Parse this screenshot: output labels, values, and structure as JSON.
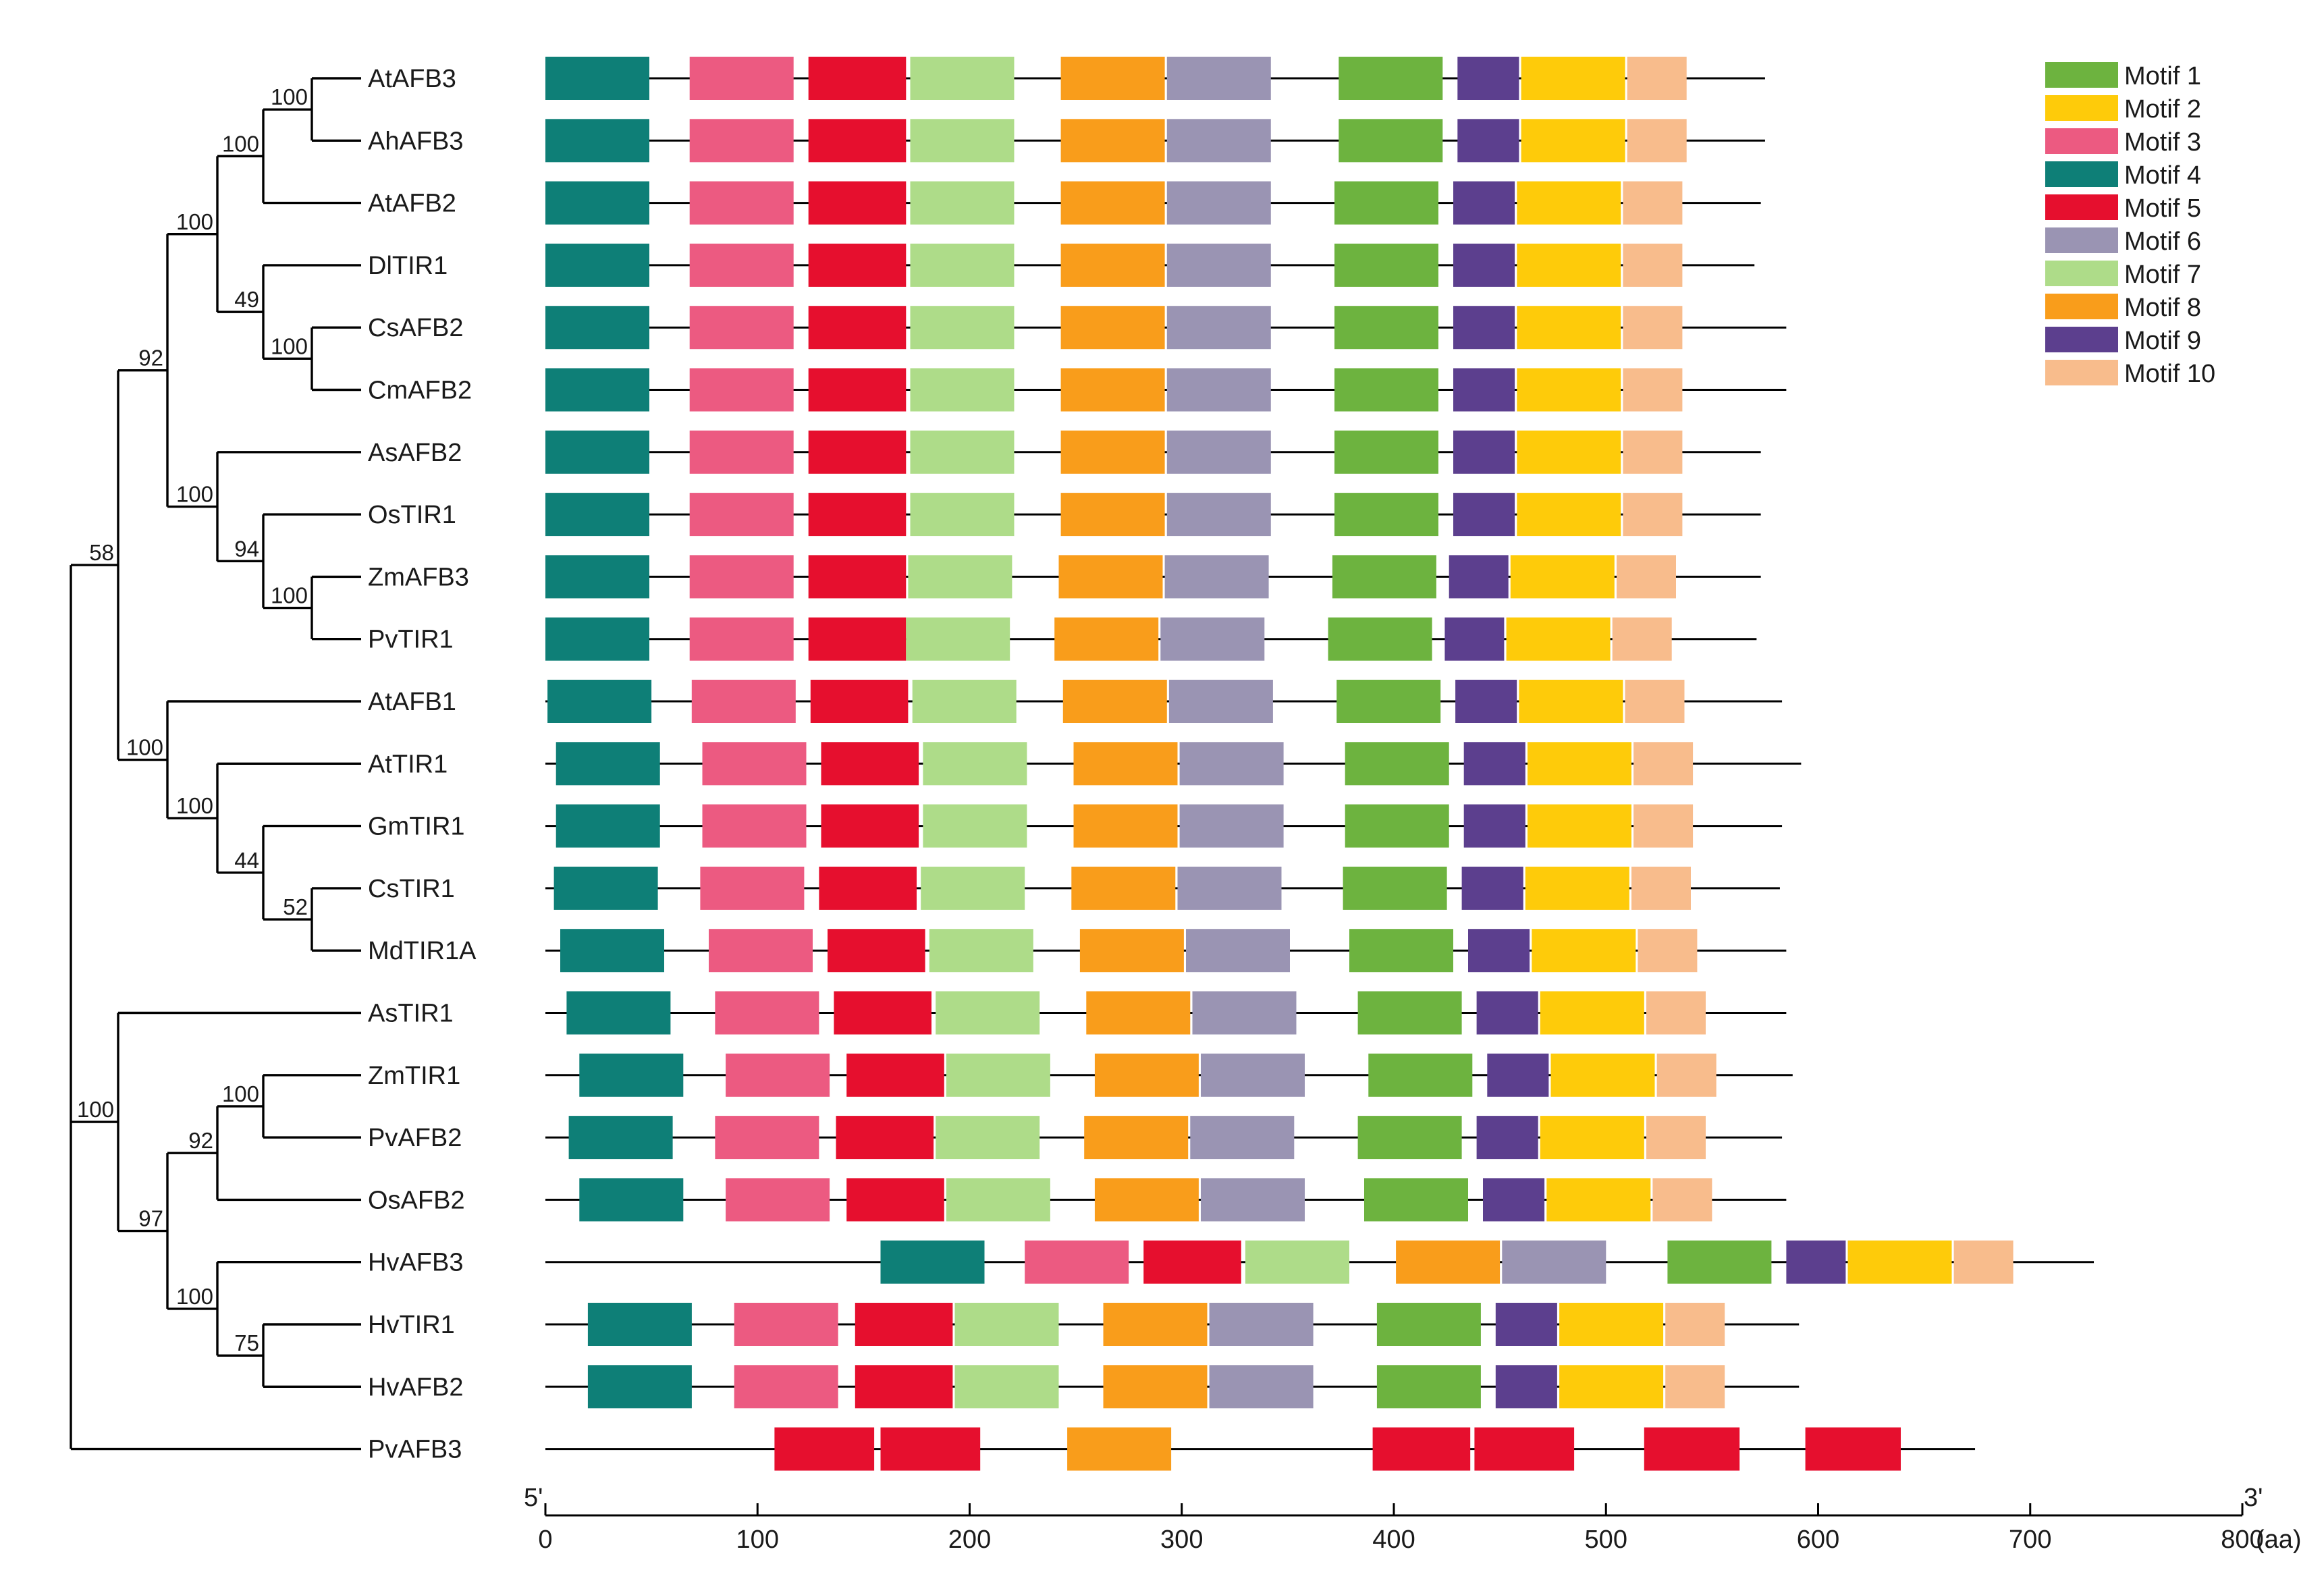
{
  "axis": {
    "unit": "(aa)",
    "end5": "5'",
    "end3": "3'",
    "ticks": [
      0,
      100,
      200,
      300,
      400,
      500,
      600,
      700,
      800
    ]
  },
  "legend": [
    {
      "label": "Motif 1",
      "color": "#6db33f"
    },
    {
      "label": "Motif 2",
      "color": "#fecb0a"
    },
    {
      "label": "Motif 3",
      "color": "#ec5a81"
    },
    {
      "label": "Motif 4",
      "color": "#0e7f77"
    },
    {
      "label": "Motif 5",
      "color": "#e60f2e"
    },
    {
      "label": "Motif 6",
      "color": "#9a94b3"
    },
    {
      "label": "Motif 7",
      "color": "#aedc89"
    },
    {
      "label": "Motif 8",
      "color": "#f99d1b"
    },
    {
      "label": "Motif 9",
      "color": "#5c3f8e"
    },
    {
      "label": "Motif 10",
      "color": "#f8bc8c"
    }
  ],
  "proteins": [
    {
      "name": "AtAFB3",
      "length": 575,
      "motifs": [
        [
          4,
          0,
          49
        ],
        [
          3,
          68,
          117
        ],
        [
          5,
          124,
          170
        ],
        [
          7,
          172,
          221
        ],
        [
          8,
          243,
          292
        ],
        [
          6,
          293,
          342
        ],
        [
          1,
          374,
          423
        ],
        [
          9,
          430,
          459
        ],
        [
          2,
          460,
          509
        ],
        [
          10,
          510,
          538
        ]
      ]
    },
    {
      "name": "AhAFB3",
      "length": 575,
      "motifs": [
        [
          4,
          0,
          49
        ],
        [
          3,
          68,
          117
        ],
        [
          5,
          124,
          170
        ],
        [
          7,
          172,
          221
        ],
        [
          8,
          243,
          292
        ],
        [
          6,
          293,
          342
        ],
        [
          1,
          374,
          423
        ],
        [
          9,
          430,
          459
        ],
        [
          2,
          460,
          509
        ],
        [
          10,
          510,
          538
        ]
      ]
    },
    {
      "name": "AtAFB2",
      "length": 573,
      "motifs": [
        [
          4,
          0,
          49
        ],
        [
          3,
          68,
          117
        ],
        [
          5,
          124,
          170
        ],
        [
          7,
          172,
          221
        ],
        [
          8,
          243,
          292
        ],
        [
          6,
          293,
          342
        ],
        [
          1,
          372,
          421
        ],
        [
          9,
          428,
          457
        ],
        [
          2,
          458,
          507
        ],
        [
          10,
          508,
          536
        ]
      ]
    },
    {
      "name": "DlTIR1",
      "length": 570,
      "motifs": [
        [
          4,
          0,
          49
        ],
        [
          3,
          68,
          117
        ],
        [
          5,
          124,
          170
        ],
        [
          7,
          172,
          221
        ],
        [
          8,
          243,
          292
        ],
        [
          6,
          293,
          342
        ],
        [
          1,
          372,
          421
        ],
        [
          9,
          428,
          457
        ],
        [
          2,
          458,
          507
        ],
        [
          10,
          508,
          536
        ]
      ]
    },
    {
      "name": "CsAFB2",
      "length": 585,
      "motifs": [
        [
          4,
          0,
          49
        ],
        [
          3,
          68,
          117
        ],
        [
          5,
          124,
          170
        ],
        [
          7,
          172,
          221
        ],
        [
          8,
          243,
          292
        ],
        [
          6,
          293,
          342
        ],
        [
          1,
          372,
          421
        ],
        [
          9,
          428,
          457
        ],
        [
          2,
          458,
          507
        ],
        [
          10,
          508,
          536
        ]
      ]
    },
    {
      "name": "CmAFB2",
      "length": 585,
      "motifs": [
        [
          4,
          0,
          49
        ],
        [
          3,
          68,
          117
        ],
        [
          5,
          124,
          170
        ],
        [
          7,
          172,
          221
        ],
        [
          8,
          243,
          292
        ],
        [
          6,
          293,
          342
        ],
        [
          1,
          372,
          421
        ],
        [
          9,
          428,
          457
        ],
        [
          2,
          458,
          507
        ],
        [
          10,
          508,
          536
        ]
      ]
    },
    {
      "name": "AsAFB2",
      "length": 573,
      "motifs": [
        [
          4,
          0,
          49
        ],
        [
          3,
          68,
          117
        ],
        [
          5,
          124,
          170
        ],
        [
          7,
          172,
          221
        ],
        [
          8,
          243,
          292
        ],
        [
          6,
          293,
          342
        ],
        [
          1,
          372,
          421
        ],
        [
          9,
          428,
          457
        ],
        [
          2,
          458,
          507
        ],
        [
          10,
          508,
          536
        ]
      ]
    },
    {
      "name": "OsTIR1",
      "length": 573,
      "motifs": [
        [
          4,
          0,
          49
        ],
        [
          3,
          68,
          117
        ],
        [
          5,
          124,
          170
        ],
        [
          7,
          172,
          221
        ],
        [
          8,
          243,
          292
        ],
        [
          6,
          293,
          342
        ],
        [
          1,
          372,
          421
        ],
        [
          9,
          428,
          457
        ],
        [
          2,
          458,
          507
        ],
        [
          10,
          508,
          536
        ]
      ]
    },
    {
      "name": "ZmAFB3",
      "length": 573,
      "motifs": [
        [
          4,
          0,
          49
        ],
        [
          3,
          68,
          117
        ],
        [
          5,
          124,
          170
        ],
        [
          7,
          171,
          220
        ],
        [
          8,
          242,
          291
        ],
        [
          6,
          292,
          341
        ],
        [
          1,
          371,
          420
        ],
        [
          9,
          426,
          454
        ],
        [
          2,
          455,
          504
        ],
        [
          10,
          505,
          533
        ]
      ]
    },
    {
      "name": "PvTIR1",
      "length": 571,
      "motifs": [
        [
          4,
          0,
          49
        ],
        [
          3,
          68,
          117
        ],
        [
          5,
          124,
          170
        ],
        [
          7,
          170,
          219
        ],
        [
          8,
          240,
          289
        ],
        [
          6,
          290,
          339
        ],
        [
          1,
          369,
          418
        ],
        [
          9,
          424,
          452
        ],
        [
          2,
          453,
          502
        ],
        [
          10,
          503,
          531
        ]
      ]
    },
    {
      "name": "AtAFB1",
      "length": 583,
      "motifs": [
        [
          4,
          1,
          50
        ],
        [
          3,
          69,
          118
        ],
        [
          5,
          125,
          171
        ],
        [
          7,
          173,
          222
        ],
        [
          8,
          244,
          293
        ],
        [
          6,
          294,
          343
        ],
        [
          1,
          373,
          422
        ],
        [
          9,
          429,
          458
        ],
        [
          2,
          459,
          508
        ],
        [
          10,
          509,
          537
        ]
      ]
    },
    {
      "name": "AtTIR1",
      "length": 592,
      "motifs": [
        [
          4,
          5,
          54
        ],
        [
          3,
          74,
          123
        ],
        [
          5,
          130,
          176
        ],
        [
          7,
          178,
          227
        ],
        [
          8,
          249,
          298
        ],
        [
          6,
          299,
          348
        ],
        [
          1,
          377,
          426
        ],
        [
          9,
          433,
          462
        ],
        [
          2,
          463,
          512
        ],
        [
          10,
          513,
          541
        ]
      ]
    },
    {
      "name": "GmTIR1",
      "length": 583,
      "motifs": [
        [
          4,
          5,
          54
        ],
        [
          3,
          74,
          123
        ],
        [
          5,
          130,
          176
        ],
        [
          7,
          178,
          227
        ],
        [
          8,
          249,
          298
        ],
        [
          6,
          299,
          348
        ],
        [
          1,
          377,
          426
        ],
        [
          9,
          433,
          462
        ],
        [
          2,
          463,
          512
        ],
        [
          10,
          513,
          541
        ]
      ]
    },
    {
      "name": "CsTIR1",
      "length": 582,
      "motifs": [
        [
          4,
          4,
          53
        ],
        [
          3,
          73,
          122
        ],
        [
          5,
          129,
          175
        ],
        [
          7,
          177,
          226
        ],
        [
          8,
          248,
          297
        ],
        [
          6,
          298,
          347
        ],
        [
          1,
          376,
          425
        ],
        [
          9,
          432,
          461
        ],
        [
          2,
          462,
          511
        ],
        [
          10,
          512,
          540
        ]
      ]
    },
    {
      "name": "MdTIR1A",
      "length": 585,
      "motifs": [
        [
          4,
          7,
          56
        ],
        [
          3,
          77,
          126
        ],
        [
          5,
          133,
          179
        ],
        [
          7,
          181,
          230
        ],
        [
          8,
          252,
          301
        ],
        [
          6,
          302,
          351
        ],
        [
          1,
          379,
          428
        ],
        [
          9,
          435,
          464
        ],
        [
          2,
          465,
          514
        ],
        [
          10,
          515,
          543
        ]
      ]
    },
    {
      "name": "AsTIR1",
      "length": 585,
      "motifs": [
        [
          4,
          10,
          59
        ],
        [
          3,
          80,
          129
        ],
        [
          5,
          136,
          182
        ],
        [
          7,
          184,
          233
        ],
        [
          8,
          255,
          304
        ],
        [
          6,
          305,
          354
        ],
        [
          1,
          383,
          432
        ],
        [
          9,
          439,
          468
        ],
        [
          2,
          469,
          518
        ],
        [
          10,
          519,
          547
        ]
      ]
    },
    {
      "name": "ZmTIR1",
      "length": 588,
      "motifs": [
        [
          4,
          16,
          65
        ],
        [
          3,
          85,
          134
        ],
        [
          5,
          142,
          188
        ],
        [
          7,
          189,
          238
        ],
        [
          8,
          259,
          308
        ],
        [
          6,
          309,
          358
        ],
        [
          1,
          388,
          437
        ],
        [
          9,
          444,
          473
        ],
        [
          2,
          474,
          523
        ],
        [
          10,
          524,
          552
        ]
      ]
    },
    {
      "name": "PvAFB2",
      "length": 583,
      "motifs": [
        [
          4,
          11,
          60
        ],
        [
          3,
          80,
          129
        ],
        [
          5,
          137,
          183
        ],
        [
          7,
          184,
          233
        ],
        [
          8,
          254,
          303
        ],
        [
          6,
          304,
          353
        ],
        [
          1,
          383,
          432
        ],
        [
          9,
          439,
          468
        ],
        [
          2,
          469,
          518
        ],
        [
          10,
          519,
          547
        ]
      ]
    },
    {
      "name": "OsAFB2",
      "length": 585,
      "motifs": [
        [
          4,
          16,
          65
        ],
        [
          3,
          85,
          134
        ],
        [
          5,
          142,
          188
        ],
        [
          7,
          189,
          238
        ],
        [
          8,
          259,
          308
        ],
        [
          6,
          309,
          358
        ],
        [
          1,
          386,
          435
        ],
        [
          9,
          442,
          471
        ],
        [
          2,
          472,
          521
        ],
        [
          10,
          522,
          550
        ]
      ]
    },
    {
      "name": "HvAFB3",
      "length": 730,
      "motifs": [
        [
          4,
          158,
          207
        ],
        [
          3,
          226,
          275
        ],
        [
          5,
          282,
          328
        ],
        [
          7,
          330,
          379
        ],
        [
          8,
          401,
          450
        ],
        [
          6,
          451,
          500
        ],
        [
          1,
          529,
          578
        ],
        [
          9,
          585,
          613
        ],
        [
          2,
          614,
          663
        ],
        [
          10,
          664,
          692
        ]
      ]
    },
    {
      "name": "HvTIR1",
      "length": 591,
      "motifs": [
        [
          4,
          20,
          69
        ],
        [
          3,
          89,
          138
        ],
        [
          5,
          146,
          192
        ],
        [
          7,
          193,
          242
        ],
        [
          8,
          263,
          312
        ],
        [
          6,
          313,
          362
        ],
        [
          1,
          392,
          441
        ],
        [
          9,
          448,
          477
        ],
        [
          2,
          478,
          527
        ],
        [
          10,
          528,
          556
        ]
      ]
    },
    {
      "name": "HvAFB2",
      "length": 591,
      "motifs": [
        [
          4,
          20,
          69
        ],
        [
          3,
          89,
          138
        ],
        [
          5,
          146,
          192
        ],
        [
          7,
          193,
          242
        ],
        [
          8,
          263,
          312
        ],
        [
          6,
          313,
          362
        ],
        [
          1,
          392,
          441
        ],
        [
          9,
          448,
          477
        ],
        [
          2,
          478,
          527
        ],
        [
          10,
          528,
          556
        ]
      ]
    },
    {
      "name": "PvAFB3",
      "length": 674,
      "motifs": [
        [
          5,
          108,
          155
        ],
        [
          5,
          158,
          205
        ],
        [
          8,
          246,
          295
        ],
        [
          5,
          390,
          436
        ],
        [
          5,
          438,
          485
        ],
        [
          5,
          518,
          563
        ],
        [
          5,
          594,
          639
        ]
      ]
    }
  ],
  "bootstrap": [
    {
      "id": "n1",
      "value": "100"
    },
    {
      "id": "n2",
      "value": "100"
    },
    {
      "id": "n3",
      "value": "100"
    },
    {
      "id": "n4",
      "value": "100"
    },
    {
      "id": "n5",
      "value": "49"
    },
    {
      "id": "n6",
      "value": "92"
    },
    {
      "id": "n7",
      "value": "100"
    },
    {
      "id": "n8",
      "value": "94"
    },
    {
      "id": "n9",
      "value": "100"
    },
    {
      "id": "n10",
      "value": "58"
    },
    {
      "id": "n11",
      "value": "100"
    },
    {
      "id": "n12",
      "value": "100"
    },
    {
      "id": "n13",
      "value": "44"
    },
    {
      "id": "n14",
      "value": "52"
    },
    {
      "id": "n15",
      "value": "100"
    },
    {
      "id": "n16",
      "value": "92"
    },
    {
      "id": "n17",
      "value": "100"
    },
    {
      "id": "n18",
      "value": "97"
    },
    {
      "id": "n19",
      "value": "100"
    },
    {
      "id": "n20",
      "value": "75"
    }
  ]
}
